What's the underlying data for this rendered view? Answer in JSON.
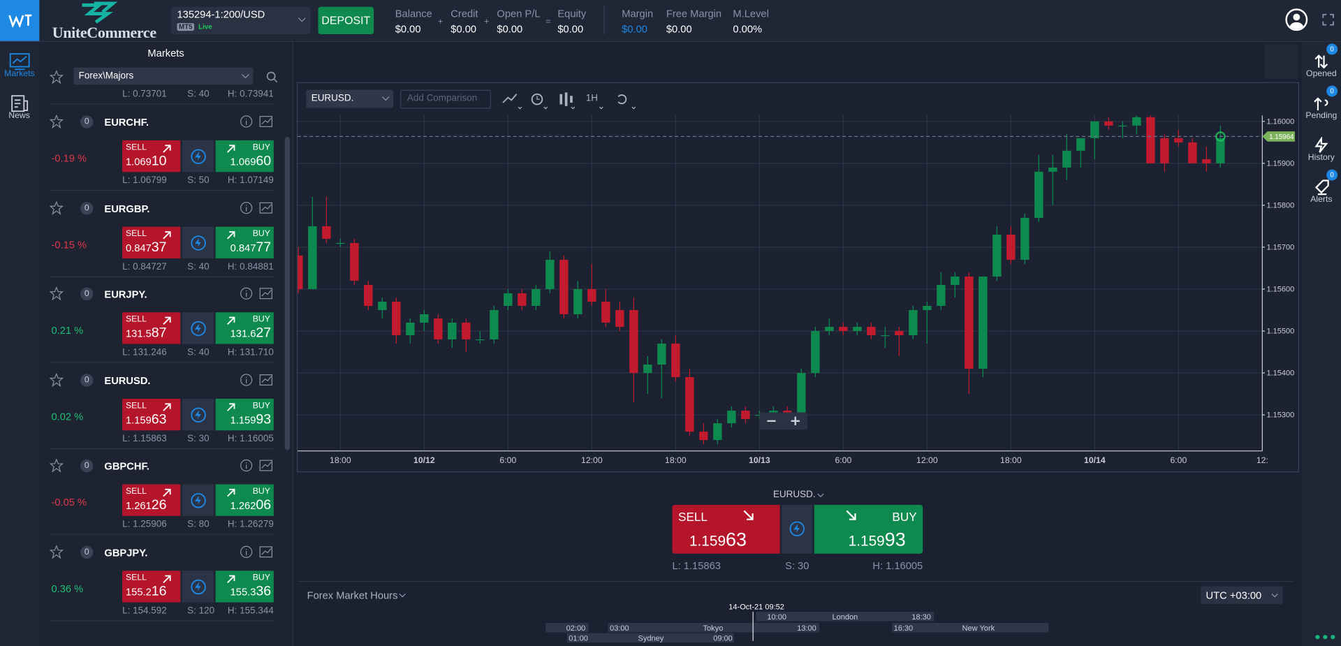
{
  "logo": "UniteCommerce",
  "header": {
    "account": "135294-1:200/USD",
    "platform": "MT5",
    "mode": "Live",
    "deposit": "DEPOSIT",
    "stats": [
      {
        "label": "Balance",
        "value": "$0.00"
      },
      {
        "label": "Credit",
        "value": "$0.00"
      },
      {
        "label": "Open P/L",
        "value": "$0.00"
      },
      {
        "label": "Equity",
        "value": "$0.00"
      },
      {
        "label": "Margin",
        "value": "$0.00"
      },
      {
        "label": "Free Margin",
        "value": "$0.00"
      },
      {
        "label": "M.Level",
        "value": "0.00%"
      }
    ],
    "operators": [
      "+",
      "+",
      "="
    ]
  },
  "left_nav": [
    {
      "label": "Markets"
    },
    {
      "label": "News"
    }
  ],
  "right_nav": [
    {
      "label": "Opened",
      "badge": "0"
    },
    {
      "label": "Pending",
      "badge": "0"
    },
    {
      "label": "History"
    },
    {
      "label": "Alerts",
      "badge": "0"
    }
  ],
  "markets": {
    "title": "Markets",
    "group": "Forex\\Majors",
    "partial_row": {
      "low": "L: 0.73701",
      "spread": "S: 40",
      "high": "H: 0.73941"
    },
    "instruments": [
      {
        "count": "0",
        "symbol": "EURCHF.",
        "change": "-0.19 %",
        "sell_label": "SELL",
        "sell": [
          "1.069",
          "10"
        ],
        "buy_label": "BUY",
        "buy": [
          "1.069",
          "60"
        ],
        "low": "L: 1.06799",
        "spread": "S: 50",
        "high": "H: 1.07149"
      },
      {
        "count": "0",
        "symbol": "EURGBP.",
        "change": "-0.15 %",
        "sell_label": "SELL",
        "sell": [
          "0.847",
          "37"
        ],
        "buy_label": "BUY",
        "buy": [
          "0.847",
          "77"
        ],
        "low": "L: 0.84727",
        "spread": "S: 40",
        "high": "H: 0.84881"
      },
      {
        "count": "0",
        "symbol": "EURJPY.",
        "change": "0.21 %",
        "sell_label": "SELL",
        "sell": [
          "131.5",
          "87"
        ],
        "buy_label": "BUY",
        "buy": [
          "131.6",
          "27"
        ],
        "low": "L: 131.246",
        "spread": "S: 40",
        "high": "H: 131.710"
      },
      {
        "count": "0",
        "symbol": "EURUSD.",
        "change": "0.02 %",
        "sell_label": "SELL",
        "sell": [
          "1.159",
          "63"
        ],
        "buy_label": "BUY",
        "buy": [
          "1.159",
          "93"
        ],
        "low": "L: 1.15863",
        "spread": "S: 30",
        "high": "H: 1.16005"
      },
      {
        "count": "0",
        "symbol": "GBPCHF.",
        "change": "-0.05 %",
        "sell_label": "SELL",
        "sell": [
          "1.261",
          "26"
        ],
        "buy_label": "BUY",
        "buy": [
          "1.262",
          "06"
        ],
        "low": "L: 1.25906",
        "spread": "S: 80",
        "high": "H: 1.26279"
      },
      {
        "count": "0",
        "symbol": "GBPJPY.",
        "change": "0.36 %",
        "sell_label": "SELL",
        "sell": [
          "155.2",
          "16"
        ],
        "buy_label": "BUY",
        "buy": [
          "155.3",
          "36"
        ],
        "low": "L: 154.592",
        "spread": "S: 120",
        "high": "H: 155.344"
      }
    ]
  },
  "chart_toolbar": {
    "symbol": "EURUSD.",
    "comparison_placeholder": "Add Comparison",
    "timeframe": "1H"
  },
  "chart_data": {
    "type": "candlestick",
    "up_color": "#0e8a4f",
    "down_color": "#c21a2e",
    "grid": true,
    "xlim": [
      0,
      69
    ],
    "ylim": [
      1.15214,
      1.16014
    ],
    "yticks": [
      {
        "value": 1.16,
        "label": "1.16000"
      },
      {
        "value": 1.159,
        "label": "1.15900"
      },
      {
        "value": 1.158,
        "label": "1.15800"
      },
      {
        "value": 1.157,
        "label": "1.15700"
      },
      {
        "value": 1.156,
        "label": "1.15600"
      },
      {
        "value": 1.155,
        "label": "1.15500"
      },
      {
        "value": 1.154,
        "label": "1.15400"
      },
      {
        "value": 1.153,
        "label": "1.15300"
      }
    ],
    "xticks": [
      {
        "value": 3,
        "label": "18:00"
      },
      {
        "value": 9,
        "label": "10/12"
      },
      {
        "value": 15,
        "label": "6:00"
      },
      {
        "value": 21,
        "label": "12:00"
      },
      {
        "value": 27,
        "label": "18:00"
      },
      {
        "value": 33,
        "label": "10/13"
      },
      {
        "value": 39,
        "label": "6:00"
      },
      {
        "value": 45,
        "label": "12:00"
      },
      {
        "value": 51,
        "label": "18:00"
      },
      {
        "value": 57,
        "label": "10/14"
      },
      {
        "value": 63,
        "label": "6:00"
      },
      {
        "value": 69,
        "label": "12:"
      }
    ],
    "last_price": {
      "value": 1.15964,
      "label": "1.15964"
    },
    "ohlc": [
      [
        1.1568,
        1.157,
        1.1559,
        1.156
      ],
      [
        1.156,
        1.1582,
        1.156,
        1.1575
      ],
      [
        1.1575,
        1.1582,
        1.1571,
        1.1572
      ],
      [
        1.1571,
        1.1572,
        1.157,
        1.1571
      ],
      [
        1.1571,
        1.1572,
        1.1561,
        1.1562
      ],
      [
        1.1561,
        1.1562,
        1.1555,
        1.1556
      ],
      [
        1.1555,
        1.1558,
        1.1553,
        1.1557
      ],
      [
        1.1557,
        1.1558,
        1.1547,
        1.1549
      ],
      [
        1.1549,
        1.1553,
        1.1547,
        1.1552
      ],
      [
        1.1552,
        1.1555,
        1.155,
        1.1554
      ],
      [
        1.1553,
        1.1554,
        1.1547,
        1.1548
      ],
      [
        1.1548,
        1.1553,
        1.1546,
        1.1552
      ],
      [
        1.1552,
        1.1553,
        1.1545,
        1.1548
      ],
      [
        1.1548,
        1.155,
        1.1547,
        1.1548
      ],
      [
        1.1548,
        1.1556,
        1.1547,
        1.1555
      ],
      [
        1.1556,
        1.156,
        1.1555,
        1.1559
      ],
      [
        1.1559,
        1.156,
        1.1555,
        1.1556
      ],
      [
        1.1556,
        1.1561,
        1.1555,
        1.156
      ],
      [
        1.156,
        1.1569,
        1.1559,
        1.1567
      ],
      [
        1.1567,
        1.1568,
        1.1553,
        1.1554
      ],
      [
        1.1554,
        1.1562,
        1.1553,
        1.156
      ],
      [
        1.156,
        1.1566,
        1.1556,
        1.1557
      ],
      [
        1.1557,
        1.156,
        1.1551,
        1.1552
      ],
      [
        1.1555,
        1.1557,
        1.155,
        1.1551
      ],
      [
        1.1555,
        1.1558,
        1.1533,
        1.154
      ],
      [
        1.154,
        1.1544,
        1.1535,
        1.1542
      ],
      [
        1.1542,
        1.1548,
        1.1534,
        1.1547
      ],
      [
        1.1547,
        1.1549,
        1.1538,
        1.1539
      ],
      [
        1.1539,
        1.1541,
        1.1525,
        1.1526
      ],
      [
        1.1526,
        1.1528,
        1.1523,
        1.1524
      ],
      [
        1.1524,
        1.1529,
        1.1523,
        1.1528
      ],
      [
        1.1528,
        1.1532,
        1.1527,
        1.1531
      ],
      [
        1.1531,
        1.1532,
        1.1528,
        1.1529
      ],
      [
        1.153,
        1.1531,
        1.1529,
        1.153
      ],
      [
        1.153,
        1.1532,
        1.1529,
        1.1531
      ],
      [
        1.1531,
        1.1532,
        1.1529,
        1.153
      ],
      [
        1.153,
        1.1541,
        1.1529,
        1.154
      ],
      [
        1.154,
        1.1551,
        1.1539,
        1.155
      ],
      [
        1.155,
        1.1553,
        1.1549,
        1.1551
      ],
      [
        1.1551,
        1.1552,
        1.1549,
        1.155
      ],
      [
        1.155,
        1.1552,
        1.1549,
        1.1551
      ],
      [
        1.1551,
        1.1552,
        1.1548,
        1.1549
      ],
      [
        1.1549,
        1.1551,
        1.1546,
        1.1549
      ],
      [
        1.155,
        1.1551,
        1.1544,
        1.1549
      ],
      [
        1.1549,
        1.1556,
        1.1548,
        1.1555
      ],
      [
        1.1555,
        1.1557,
        1.1547,
        1.1556
      ],
      [
        1.1556,
        1.1564,
        1.1555,
        1.1561
      ],
      [
        1.1561,
        1.1564,
        1.1558,
        1.1563
      ],
      [
        1.1563,
        1.1564,
        1.1535,
        1.1541
      ],
      [
        1.1541,
        1.1563,
        1.1539,
        1.1563
      ],
      [
        1.1563,
        1.1575,
        1.1562,
        1.1573
      ],
      [
        1.1573,
        1.1575,
        1.1566,
        1.1567
      ],
      [
        1.1567,
        1.1578,
        1.1566,
        1.1577
      ],
      [
        1.1577,
        1.1592,
        1.1576,
        1.1588
      ],
      [
        1.1588,
        1.1592,
        1.158,
        1.1589
      ],
      [
        1.1589,
        1.1597,
        1.1586,
        1.1593
      ],
      [
        1.1593,
        1.1596,
        1.1589,
        1.1596
      ],
      [
        1.1596,
        1.16,
        1.1591,
        1.16
      ],
      [
        1.16,
        1.1601,
        1.1598,
        1.1599
      ],
      [
        1.1599,
        1.16,
        1.1596,
        1.1599
      ],
      [
        1.1599,
        1.1603,
        1.1597,
        1.1601
      ],
      [
        1.1601,
        1.1602,
        1.159,
        1.159
      ],
      [
        1.1596,
        1.1597,
        1.1588,
        1.159
      ],
      [
        1.1596,
        1.1598,
        1.1594,
        1.1595
      ],
      [
        1.1595,
        1.1596,
        1.159,
        1.159
      ],
      [
        1.1591,
        1.1594,
        1.1588,
        1.159
      ],
      [
        1.159,
        1.1599,
        1.1589,
        1.1596
      ]
    ]
  },
  "trade_panel": {
    "symbol": "EURUSD.",
    "sell_label": "SELL",
    "sell": [
      "1.159",
      "63"
    ],
    "buy_label": "BUY",
    "buy": [
      "1.159",
      "93"
    ],
    "low": "L: 1.15863",
    "spread": "S: 30",
    "high": "H: 1.16005"
  },
  "market_hours": {
    "title": "Forex Market Hours",
    "timezone": "UTC +03:00",
    "now": "14-Oct-21 09:52",
    "labels": [
      "10:00",
      "London",
      "18:30",
      "02:00",
      "03:00",
      "Tokyo",
      "13:00",
      "16:30",
      "New York",
      "01:00",
      "Sydney",
      "09:00"
    ]
  }
}
